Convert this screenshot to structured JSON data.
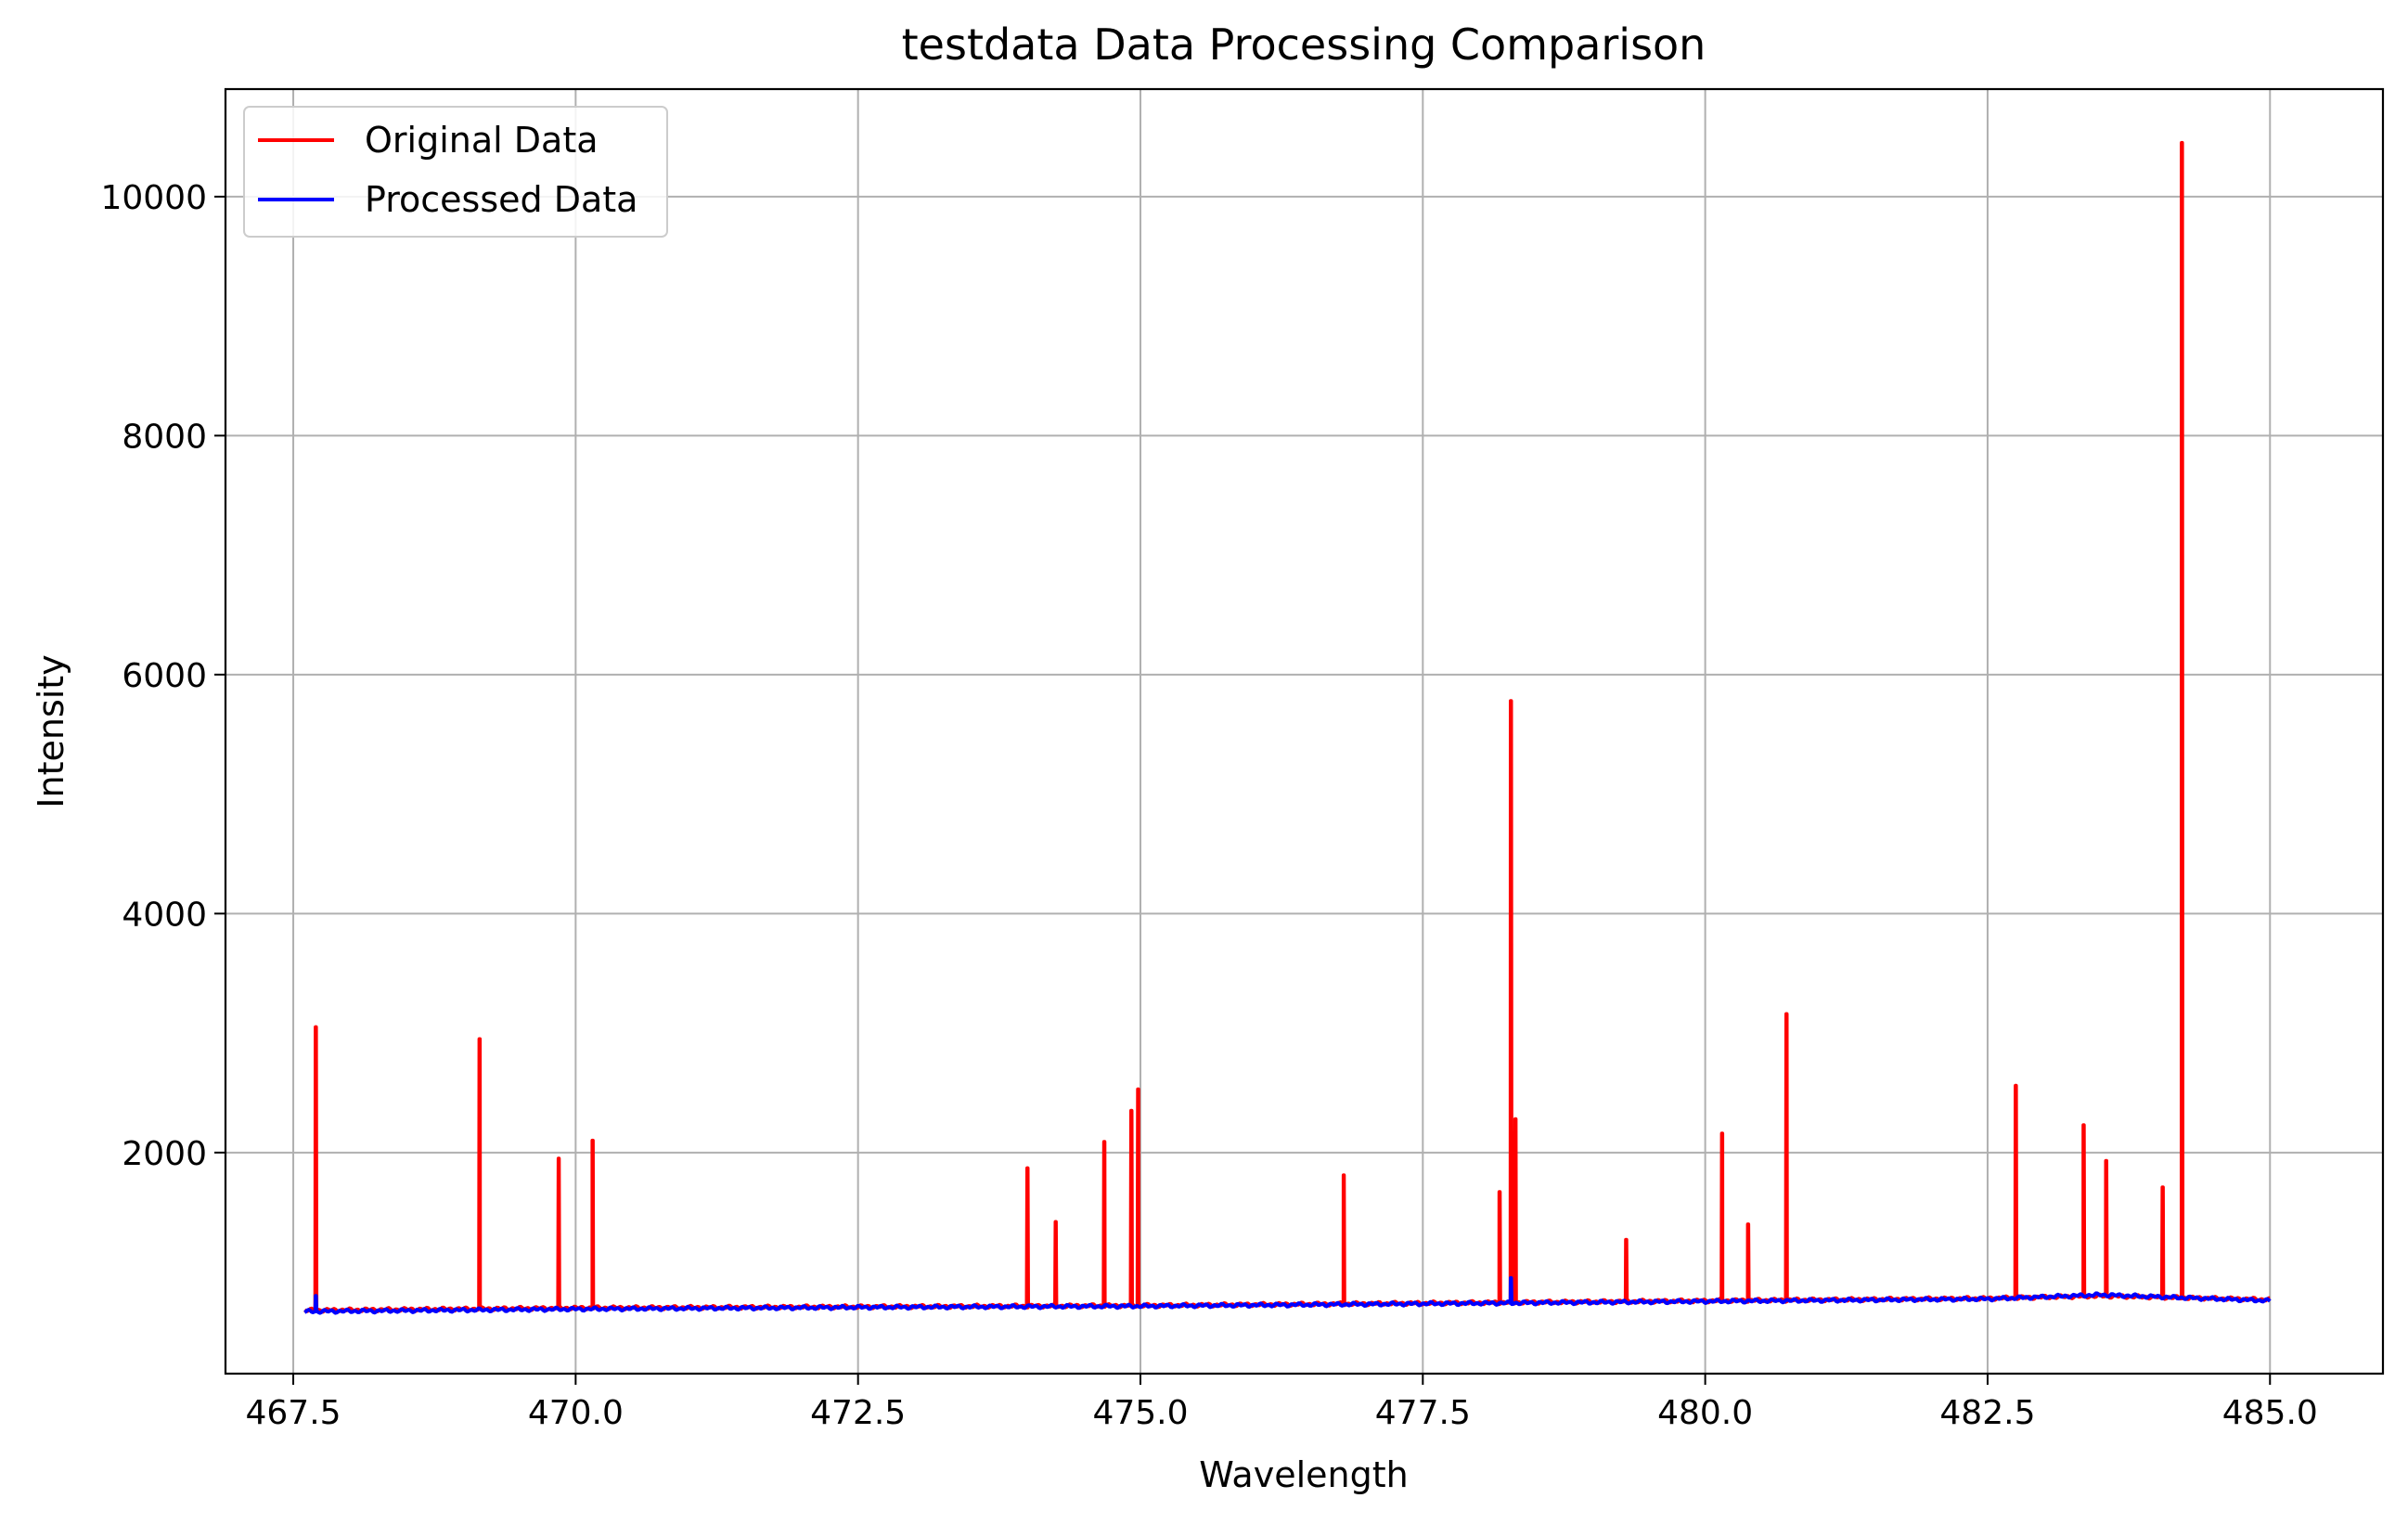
{
  "chart_data": {
    "type": "line",
    "title": "testdata Data Processing Comparison",
    "xlabel": "Wavelength",
    "ylabel": "Intensity",
    "xlim": [
      466.9,
      486.0
    ],
    "ylim": [
      150,
      10900
    ],
    "grid": true,
    "legend_position": "top-left",
    "x_ticks": [
      "467.5",
      "470.0",
      "472.5",
      "475.0",
      "477.5",
      "480.0",
      "482.5",
      "485.0"
    ],
    "y_ticks": [
      "2000",
      "4000",
      "6000",
      "8000",
      "10000"
    ],
    "series": [
      {
        "name": "Original Data",
        "color": "#ff0000",
        "baseline": [
          [
            467.6,
            680
          ],
          [
            470.0,
            700
          ],
          [
            472.5,
            710
          ],
          [
            475.0,
            720
          ],
          [
            477.5,
            740
          ],
          [
            480.0,
            760
          ],
          [
            482.5,
            780
          ],
          [
            483.5,
            800
          ],
          [
            485.0,
            770
          ]
        ],
        "peaks": [
          {
            "x": 467.7,
            "y": 3050
          },
          {
            "x": 469.15,
            "y": 2950
          },
          {
            "x": 469.85,
            "y": 1950
          },
          {
            "x": 470.15,
            "y": 2100
          },
          {
            "x": 474.0,
            "y": 1870
          },
          {
            "x": 474.25,
            "y": 1420
          },
          {
            "x": 474.68,
            "y": 2090
          },
          {
            "x": 474.92,
            "y": 2350
          },
          {
            "x": 474.98,
            "y": 2530
          },
          {
            "x": 476.8,
            "y": 1810
          },
          {
            "x": 478.18,
            "y": 1670
          },
          {
            "x": 478.28,
            "y": 5780
          },
          {
            "x": 478.32,
            "y": 2280
          },
          {
            "x": 479.3,
            "y": 1270
          },
          {
            "x": 480.15,
            "y": 2160
          },
          {
            "x": 480.38,
            "y": 1400
          },
          {
            "x": 480.72,
            "y": 3160
          },
          {
            "x": 482.75,
            "y": 2560
          },
          {
            "x": 483.35,
            "y": 2230
          },
          {
            "x": 483.55,
            "y": 1930
          },
          {
            "x": 484.05,
            "y": 1710
          },
          {
            "x": 484.22,
            "y": 10450
          }
        ]
      },
      {
        "name": "Processed Data",
        "color": "#0000ff",
        "baseline": [
          [
            467.6,
            670
          ],
          [
            470.0,
            690
          ],
          [
            472.5,
            705
          ],
          [
            475.0,
            715
          ],
          [
            477.5,
            735
          ],
          [
            480.0,
            755
          ],
          [
            482.5,
            775
          ],
          [
            483.5,
            810
          ],
          [
            485.0,
            760
          ]
        ],
        "peaks": [
          {
            "x": 467.7,
            "y": 800
          },
          {
            "x": 478.28,
            "y": 950
          }
        ]
      }
    ]
  }
}
